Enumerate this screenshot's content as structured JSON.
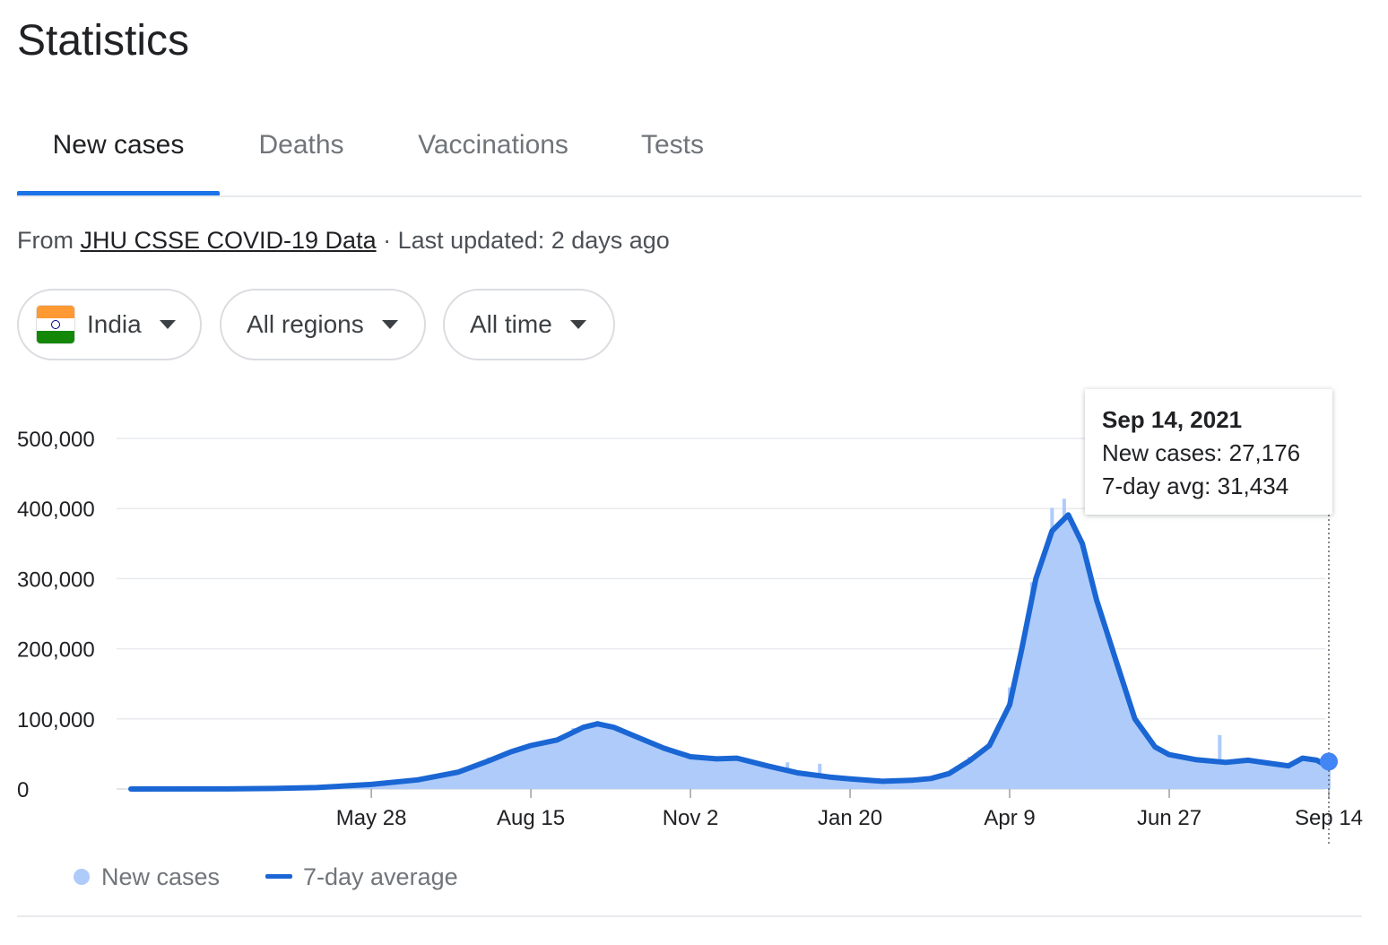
{
  "page": {
    "title": "Statistics"
  },
  "tabs": [
    {
      "label": "New cases",
      "active": true
    },
    {
      "label": "Deaths",
      "active": false
    },
    {
      "label": "Vaccinations",
      "active": false
    },
    {
      "label": "Tests",
      "active": false
    }
  ],
  "source": {
    "prefix": "From ",
    "link_text": "JHU CSSE COVID-19 Data",
    "updated": " · Last updated: 2 days ago"
  },
  "filters": {
    "country": {
      "label": "India",
      "icon": "india-flag-icon"
    },
    "region": {
      "label": "All regions"
    },
    "time": {
      "label": "All time"
    }
  },
  "tooltip": {
    "date": "Sep 14, 2021",
    "new_cases": "New cases: 27,176",
    "avg": "7-day avg: 31,434"
  },
  "legend": {
    "new_cases": "New cases",
    "avg": "7-day average"
  },
  "colors": {
    "bars": "#aecbfa",
    "line": "#1a66d4",
    "accent": "#1a73e8"
  },
  "chart_data": {
    "type": "bar",
    "x_unit": "date",
    "x_range": [
      "2020-01-30",
      "2021-09-14"
    ],
    "ylim": [
      0,
      500000
    ],
    "y_ticks": [
      0,
      100000,
      200000,
      300000,
      400000,
      500000
    ],
    "y_tick_labels": [
      "0",
      "100,000",
      "200,000",
      "300,000",
      "400,000",
      "500,000"
    ],
    "x_tick_dates": [
      "2020-05-28",
      "2020-08-15",
      "2020-11-02",
      "2021-01-20",
      "2021-04-09",
      "2021-06-27",
      "2021-09-14"
    ],
    "x_tick_labels": [
      "May 28",
      "Aug 15",
      "Nov 2",
      "Jan 20",
      "Apr 9",
      "Jun 27",
      "Sep 14"
    ],
    "grid": true,
    "legend": "bottom-left",
    "series": [
      {
        "name": "7-day average",
        "kind": "line",
        "points": [
          [
            "2020-01-30",
            0
          ],
          [
            "2020-03-15",
            100
          ],
          [
            "2020-04-10",
            800
          ],
          [
            "2020-05-01",
            2000
          ],
          [
            "2020-05-28",
            6500
          ],
          [
            "2020-06-20",
            13000
          ],
          [
            "2020-07-10",
            24000
          ],
          [
            "2020-07-25",
            40000
          ],
          [
            "2020-08-05",
            53000
          ],
          [
            "2020-08-15",
            62000
          ],
          [
            "2020-08-28",
            70000
          ],
          [
            "2020-09-10",
            88000
          ],
          [
            "2020-09-17",
            93000
          ],
          [
            "2020-09-25",
            88000
          ],
          [
            "2020-10-05",
            76000
          ],
          [
            "2020-10-20",
            58000
          ],
          [
            "2020-11-02",
            46000
          ],
          [
            "2020-11-15",
            43000
          ],
          [
            "2020-11-25",
            44000
          ],
          [
            "2020-12-10",
            33000
          ],
          [
            "2020-12-25",
            23000
          ],
          [
            "2021-01-10",
            17000
          ],
          [
            "2021-01-20",
            14500
          ],
          [
            "2021-02-05",
            11000
          ],
          [
            "2021-02-20",
            12500
          ],
          [
            "2021-03-01",
            15000
          ],
          [
            "2021-03-10",
            22000
          ],
          [
            "2021-03-20",
            40000
          ],
          [
            "2021-03-30",
            62000
          ],
          [
            "2021-04-09",
            120000
          ],
          [
            "2021-04-15",
            200000
          ],
          [
            "2021-04-22",
            300000
          ],
          [
            "2021-04-30",
            368000
          ],
          [
            "2021-05-08",
            391000
          ],
          [
            "2021-05-15",
            350000
          ],
          [
            "2021-05-22",
            270000
          ],
          [
            "2021-06-01",
            180000
          ],
          [
            "2021-06-10",
            100000
          ],
          [
            "2021-06-20",
            60000
          ],
          [
            "2021-06-27",
            49000
          ],
          [
            "2021-07-10",
            42000
          ],
          [
            "2021-07-25",
            38000
          ],
          [
            "2021-08-05",
            41000
          ],
          [
            "2021-08-15",
            37000
          ],
          [
            "2021-08-25",
            33000
          ],
          [
            "2021-09-01",
            44000
          ],
          [
            "2021-09-08",
            41000
          ],
          [
            "2021-09-14",
            31434
          ]
        ]
      },
      {
        "name": "New cases",
        "kind": "bar",
        "points": [
          [
            "2020-05-28",
            7000
          ],
          [
            "2020-07-25",
            45000
          ],
          [
            "2020-08-15",
            65000
          ],
          [
            "2020-09-05",
            87000
          ],
          [
            "2020-09-17",
            97000
          ],
          [
            "2020-10-05",
            75000
          ],
          [
            "2020-11-02",
            46000
          ],
          [
            "2020-12-20",
            38000
          ],
          [
            "2021-01-05",
            36000
          ],
          [
            "2021-01-20",
            14000
          ],
          [
            "2021-02-20",
            13000
          ],
          [
            "2021-03-20",
            46000
          ],
          [
            "2021-04-09",
            145000
          ],
          [
            "2021-04-20",
            295000
          ],
          [
            "2021-04-30",
            401000
          ],
          [
            "2021-05-06",
            414000
          ],
          [
            "2021-05-15",
            326000
          ],
          [
            "2021-06-01",
            128000
          ],
          [
            "2021-06-27",
            46000
          ],
          [
            "2021-07-22",
            77000
          ],
          [
            "2021-08-15",
            36000
          ],
          [
            "2021-09-03",
            45000
          ],
          [
            "2021-09-14",
            27176
          ]
        ]
      }
    ]
  }
}
